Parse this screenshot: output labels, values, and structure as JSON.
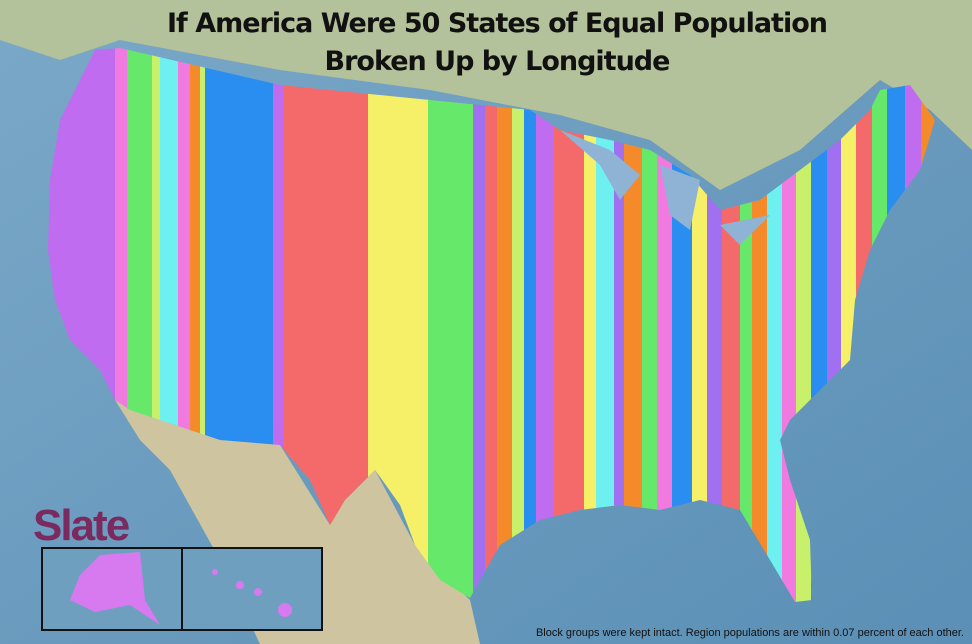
{
  "title": {
    "line1": "If America Were 50 States of Equal Population",
    "line2": "Broken Up by Longitude"
  },
  "logo": "Slate",
  "footnote": "Block groups were kept intact. Region populations are within 0.07 percent of each other."
}
